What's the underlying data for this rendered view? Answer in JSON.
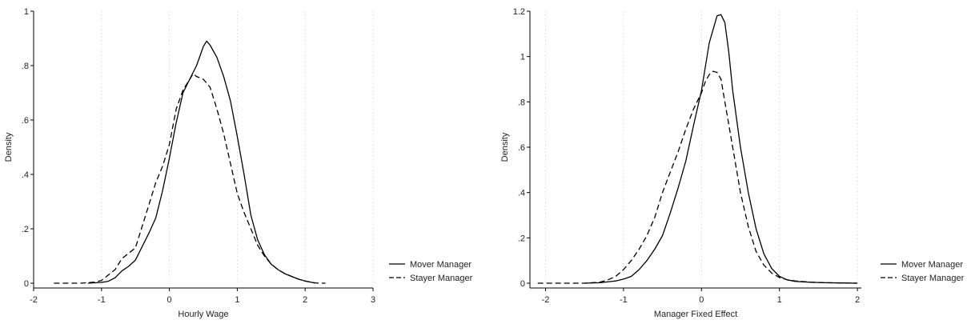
{
  "chart_data": [
    {
      "type": "line",
      "xlabel": "Hourly Wage",
      "ylabel": "Density",
      "xlim": [
        -2,
        3
      ],
      "ylim": [
        0,
        1
      ],
      "xticks": [
        -2,
        -1,
        0,
        1,
        2,
        3
      ],
      "xtick_labels": [
        "-2",
        "-1",
        "0",
        "1",
        "2",
        "3"
      ],
      "yticks": [
        0,
        0.2,
        0.4,
        0.6,
        0.8,
        1
      ],
      "ytick_labels": [
        "0",
        ".2",
        ".4",
        ".6",
        ".8",
        "1"
      ],
      "grid": "vertical dotted",
      "legend_position": "right",
      "series": [
        {
          "name": "Mover Manager",
          "style": "solid",
          "x": [
            -1.2,
            -1.0,
            -0.9,
            -0.8,
            -0.7,
            -0.6,
            -0.5,
            -0.4,
            -0.3,
            -0.2,
            -0.1,
            0.0,
            0.1,
            0.2,
            0.3,
            0.4,
            0.45,
            0.5,
            0.55,
            0.6,
            0.7,
            0.8,
            0.9,
            1.0,
            1.1,
            1.2,
            1.3,
            1.4,
            1.5,
            1.6,
            1.7,
            1.8,
            1.9,
            2.0,
            2.1,
            2.15
          ],
          "y": [
            0.0,
            0.003,
            0.007,
            0.02,
            0.045,
            0.062,
            0.085,
            0.135,
            0.185,
            0.24,
            0.34,
            0.46,
            0.59,
            0.7,
            0.75,
            0.8,
            0.835,
            0.87,
            0.89,
            0.875,
            0.83,
            0.76,
            0.67,
            0.54,
            0.4,
            0.25,
            0.16,
            0.105,
            0.07,
            0.05,
            0.035,
            0.025,
            0.015,
            0.008,
            0.003,
            0.0
          ]
        },
        {
          "name": "Stayer Manager",
          "style": "dashed",
          "x": [
            -1.7,
            -1.5,
            -1.3,
            -1.1,
            -1.0,
            -0.9,
            -0.8,
            -0.7,
            -0.6,
            -0.5,
            -0.4,
            -0.3,
            -0.2,
            -0.1,
            0.0,
            0.1,
            0.2,
            0.3,
            0.35,
            0.4,
            0.5,
            0.6,
            0.7,
            0.8,
            0.9,
            1.0,
            1.1,
            1.2,
            1.3,
            1.4,
            1.5,
            1.6,
            1.7,
            1.8,
            1.9,
            2.0,
            2.1,
            2.2,
            2.3
          ],
          "y": [
            0.0,
            0.0,
            0.0,
            0.004,
            0.01,
            0.03,
            0.05,
            0.09,
            0.11,
            0.13,
            0.21,
            0.29,
            0.37,
            0.43,
            0.51,
            0.64,
            0.71,
            0.75,
            0.77,
            0.76,
            0.75,
            0.72,
            0.64,
            0.55,
            0.44,
            0.33,
            0.26,
            0.2,
            0.14,
            0.1,
            0.07,
            0.05,
            0.035,
            0.025,
            0.015,
            0.008,
            0.003,
            0.0,
            0.0
          ]
        }
      ]
    },
    {
      "type": "line",
      "xlabel": "Manager Fixed Effect",
      "ylabel": "Density",
      "xlim": [
        -2.2,
        2.05
      ],
      "ylim": [
        0,
        1.2
      ],
      "xticks": [
        -2,
        -1,
        0,
        1,
        2
      ],
      "xtick_labels": [
        "-2",
        "-1",
        "0",
        "1",
        "2"
      ],
      "yticks": [
        0,
        0.2,
        0.4,
        0.6,
        0.8,
        1.0,
        1.2
      ],
      "ytick_labels": [
        "0",
        ".2",
        ".4",
        ".6",
        ".8",
        "1",
        "1.2"
      ],
      "grid": "vertical dotted",
      "legend_position": "right",
      "series": [
        {
          "name": "Mover Manager",
          "style": "solid",
          "x": [
            -1.5,
            -1.3,
            -1.1,
            -1.0,
            -0.9,
            -0.8,
            -0.7,
            -0.6,
            -0.5,
            -0.4,
            -0.3,
            -0.2,
            -0.1,
            0.0,
            0.1,
            0.15,
            0.2,
            0.25,
            0.3,
            0.35,
            0.4,
            0.5,
            0.6,
            0.7,
            0.8,
            0.9,
            1.0,
            1.1,
            1.2,
            1.4,
            1.6,
            1.8,
            2.0
          ],
          "y": [
            0.0,
            0.002,
            0.01,
            0.018,
            0.03,
            0.06,
            0.1,
            0.15,
            0.21,
            0.31,
            0.42,
            0.54,
            0.7,
            0.85,
            1.06,
            1.12,
            1.18,
            1.185,
            1.15,
            1.02,
            0.85,
            0.6,
            0.4,
            0.24,
            0.13,
            0.065,
            0.03,
            0.015,
            0.008,
            0.004,
            0.002,
            0.001,
            0.0
          ]
        },
        {
          "name": "Stayer Manager",
          "style": "dashed",
          "x": [
            -2.1,
            -1.8,
            -1.5,
            -1.3,
            -1.2,
            -1.1,
            -1.0,
            -0.9,
            -0.8,
            -0.7,
            -0.6,
            -0.5,
            -0.4,
            -0.3,
            -0.2,
            -0.1,
            0.0,
            0.05,
            0.1,
            0.15,
            0.2,
            0.25,
            0.3,
            0.4,
            0.5,
            0.6,
            0.7,
            0.8,
            0.9,
            1.0,
            1.1,
            1.2,
            1.4,
            1.6,
            1.8,
            2.0
          ],
          "y": [
            0.0,
            0.0,
            0.0,
            0.005,
            0.015,
            0.03,
            0.06,
            0.1,
            0.15,
            0.21,
            0.29,
            0.4,
            0.49,
            0.58,
            0.68,
            0.77,
            0.84,
            0.89,
            0.92,
            0.935,
            0.93,
            0.9,
            0.8,
            0.6,
            0.4,
            0.25,
            0.14,
            0.08,
            0.045,
            0.025,
            0.015,
            0.01,
            0.005,
            0.002,
            0.001,
            0.0
          ]
        }
      ]
    }
  ]
}
